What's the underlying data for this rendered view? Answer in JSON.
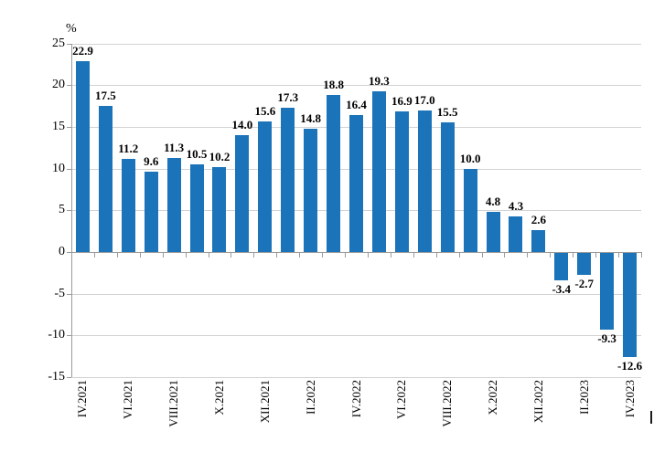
{
  "chart_data": {
    "type": "bar",
    "title": "",
    "xlabel": "",
    "ylabel": "%",
    "ylim": [
      -15,
      25
    ],
    "ytick_step": 5,
    "grid": true,
    "legend": "none",
    "bar_color": "#1B74BA",
    "gridline_color": "#D2D2D2",
    "axis_color": "#9B9B9B",
    "categories": [
      "IV.2021",
      "",
      "VI.2021",
      "",
      "VIII.2021",
      "",
      "X.2021",
      "",
      "XII.2021",
      "",
      "II.2022",
      "",
      "IV.2022",
      "",
      "VI.2022",
      "",
      "VIII.2022",
      "",
      "X.2022",
      "",
      "XII.2022",
      "",
      "II.2023",
      "",
      "IV.2023"
    ],
    "values": [
      22.9,
      17.5,
      11.2,
      9.6,
      11.3,
      10.5,
      10.2,
      14.0,
      15.6,
      17.3,
      14.8,
      18.8,
      16.4,
      19.3,
      16.9,
      17.0,
      15.5,
      10.0,
      4.8,
      4.3,
      2.6,
      -3.4,
      -2.7,
      -9.3,
      -12.6
    ],
    "value_labels": [
      "22.9",
      "17.5",
      "11.2",
      "9.6",
      "11.3",
      "10.5",
      "10.2",
      "14.0",
      "15.6",
      "17.3",
      "14.8",
      "18.8",
      "16.4",
      "19.3",
      "16.9",
      "17.0",
      "15.5",
      "10.0",
      "4.8",
      "4.3",
      "2.6",
      "-3.4",
      "-2.7",
      "-9.3",
      "-12.6"
    ]
  }
}
